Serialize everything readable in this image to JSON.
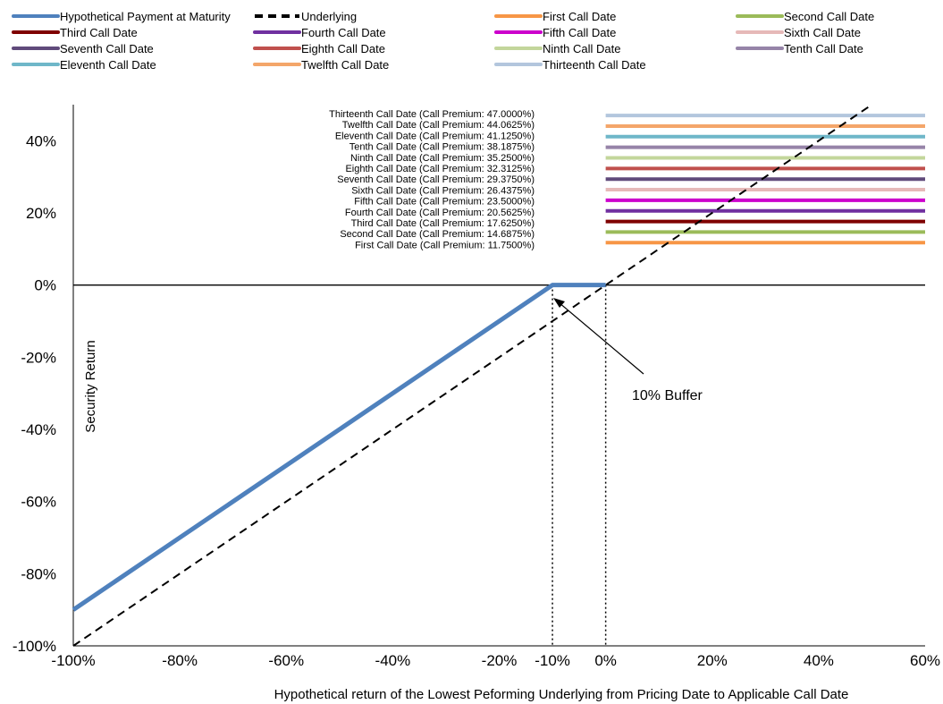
{
  "chart_data": {
    "type": "line",
    "xlabel": "Hypothetical return of the Lowest Peforming Underlying from Pricing Date to Applicable Call Date",
    "ylabel": "Security Return",
    "xlim": [
      -100,
      60
    ],
    "ylim": [
      -100,
      50
    ],
    "x_ticks": [
      {
        "value": -100,
        "label": "-100%"
      },
      {
        "value": -80,
        "label": "-80%"
      },
      {
        "value": -60,
        "label": "-60%"
      },
      {
        "value": -40,
        "label": "-40%"
      },
      {
        "value": -20,
        "label": "-20%"
      },
      {
        "value": -10,
        "label": "-10%"
      },
      {
        "value": 0,
        "label": "0%"
      },
      {
        "value": 20,
        "label": "20%"
      },
      {
        "value": 40,
        "label": "40%"
      },
      {
        "value": 60,
        "label": "60%"
      }
    ],
    "y_ticks": [
      {
        "value": 40,
        "label": "40%"
      },
      {
        "value": 20,
        "label": "20%"
      },
      {
        "value": 0,
        "label": "0%"
      },
      {
        "value": -20,
        "label": "-20%"
      },
      {
        "value": -40,
        "label": "-40%"
      },
      {
        "value": -60,
        "label": "-60%"
      },
      {
        "value": -80,
        "label": "-80%"
      },
      {
        "value": -100,
        "label": "-100%"
      }
    ],
    "grid": false,
    "legend_position": "top",
    "payment_series": {
      "name": "Hypothetical Payment at Maturity",
      "color": "#4F81BD",
      "x": [
        -100,
        -10,
        0
      ],
      "y": [
        -90,
        0,
        0
      ]
    },
    "underlying_series": {
      "name": "Underlying",
      "color": "#000000",
      "x": [
        -100,
        50
      ],
      "y": [
        -100,
        50
      ]
    },
    "call_series": [
      {
        "name": "First Call Date",
        "premium": 11.75,
        "color": "#F79646",
        "label": "First Call Date (Call Premium: 11.7500%)"
      },
      {
        "name": "Second Call Date",
        "premium": 14.6875,
        "color": "#9BBB59",
        "label": "Second Call Date (Call Premium: 14.6875%)"
      },
      {
        "name": "Third Call Date",
        "premium": 17.625,
        "color": "#7F0000",
        "label": "Third Call Date (Call Premium: 17.6250%)"
      },
      {
        "name": "Fourth Call Date",
        "premium": 20.5625,
        "color": "#7030A0",
        "label": "Fourth Call Date (Call Premium: 20.5625%)"
      },
      {
        "name": "Fifth Call Date",
        "premium": 23.5,
        "color": "#CC00CC",
        "label": "Fifth Call Date (Call Premium: 23.5000%)"
      },
      {
        "name": "Sixth Call Date",
        "premium": 26.4375,
        "color": "#E6B9B8",
        "label": "Sixth Call Date (Call Premium: 26.4375%)"
      },
      {
        "name": "Seventh Call Date",
        "premium": 29.375,
        "color": "#604A7B",
        "label": "Seventh Call Date (Call Premium: 29.3750%)"
      },
      {
        "name": "Eighth Call Date",
        "premium": 32.3125,
        "color": "#C0504D",
        "label": "Eighth Call Date (Call Premium: 32.3125%)"
      },
      {
        "name": "Ninth Call Date",
        "premium": 35.25,
        "color": "#C3D69B",
        "label": "Ninth Call Date (Call Premium: 35.2500%)"
      },
      {
        "name": "Tenth Call Date",
        "premium": 38.1875,
        "color": "#9684A8",
        "label": "Tenth Call Date (Call Premium: 38.1875%)"
      },
      {
        "name": "Eleventh Call Date",
        "premium": 41.125,
        "color": "#6FB7C9",
        "label": "Eleventh Call Date (Call Premium: 41.1250%)"
      },
      {
        "name": "Twelfth Call Date",
        "premium": 44.0625,
        "color": "#F4A66A",
        "label": "Twelfth Call Date (Call Premium: 44.0625%)"
      },
      {
        "name": "Thirteenth Call Date",
        "premium": 47.0,
        "color": "#B3C6DD",
        "label": "Thirteenth Call Date (Call Premium: 47.0000%)"
      }
    ],
    "call_line_x_range": [
      0,
      60
    ],
    "legend_order": [
      "Hypothetical Payment at Maturity",
      "Underlying",
      "First Call Date",
      "Second Call Date",
      "Third Call Date",
      "Fourth Call Date",
      "Fifth Call Date",
      "Sixth Call Date",
      "Seventh Call Date",
      "Eighth Call Date",
      "Ninth Call Date",
      "Tenth Call Date",
      "Eleventh Call Date",
      "Twelfth Call Date",
      "Thirteenth Call Date"
    ],
    "buffer_markers_x": [
      -10,
      0
    ],
    "annotation": {
      "text": "10% Buffer",
      "points_to": {
        "x": -10,
        "y": 0
      }
    }
  }
}
